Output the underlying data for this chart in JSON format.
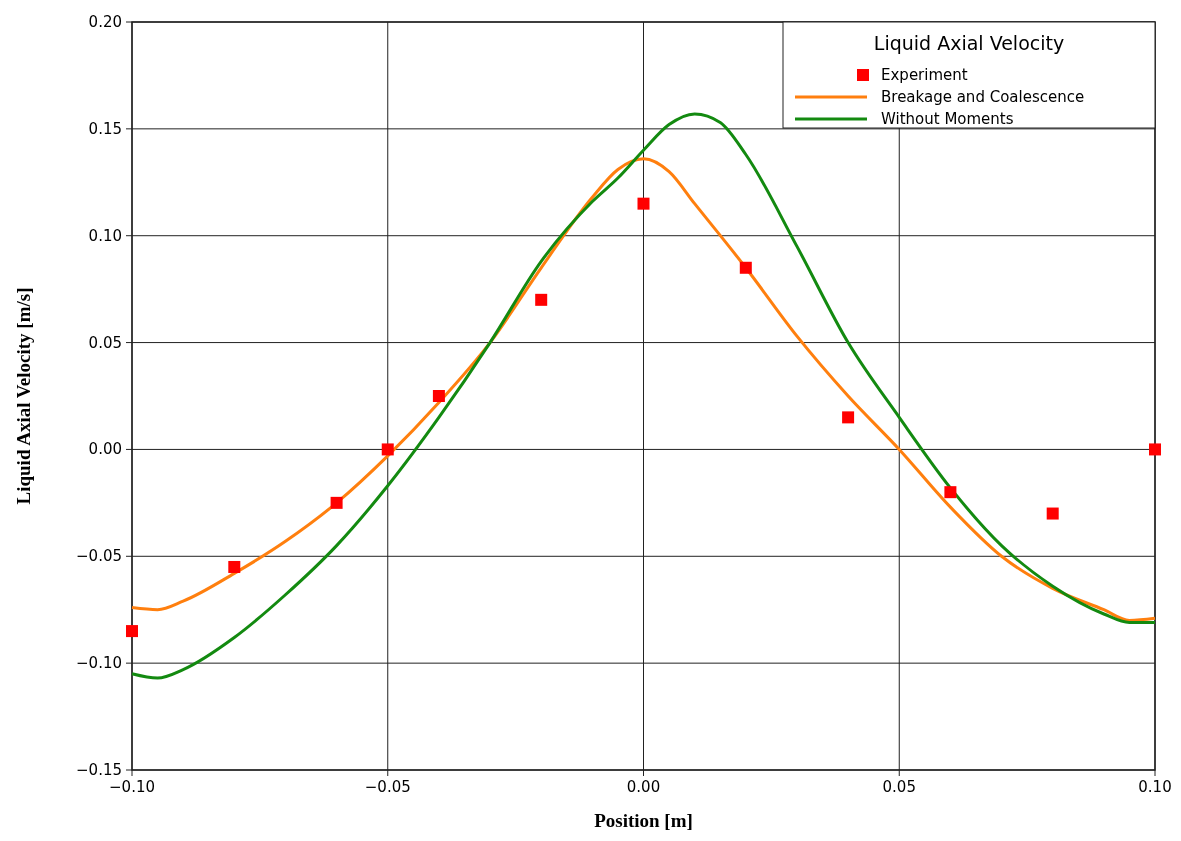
{
  "chart_data": {
    "type": "line",
    "xlabel": "Position [m]",
    "ylabel": "Liquid Axial Velocity [m/s]",
    "legend_title": "Liquid Axial Velocity",
    "xlim": [
      -0.1,
      0.1
    ],
    "xticks": [
      {
        "value": -0.1,
        "label": "−0.10"
      },
      {
        "value": -0.05,
        "label": "−0.05"
      },
      {
        "value": 0,
        "label": "0.00"
      },
      {
        "value": 0.05,
        "label": "0.05"
      },
      {
        "value": 0.1,
        "label": "0.10"
      }
    ],
    "ylim": [
      -0.15,
      0.2
    ],
    "yticks": [
      {
        "value": -0.15,
        "label": "−0.15"
      },
      {
        "value": -0.1,
        "label": "−0.10"
      },
      {
        "value": -0.05,
        "label": "−0.05"
      },
      {
        "value": 0,
        "label": "0.00"
      },
      {
        "value": 0.05,
        "label": "0.05"
      },
      {
        "value": 0.1,
        "label": "0.10"
      },
      {
        "value": 0.15,
        "label": "0.15"
      },
      {
        "value": 0.2,
        "label": "0.20"
      }
    ],
    "grid": true,
    "legend": "top right",
    "series": [
      {
        "name": "Experiment",
        "type": "scatter",
        "marker": "square",
        "color": "#ff0000",
        "x": [
          -0.1,
          -0.08,
          -0.06,
          -0.05,
          -0.04,
          -0.02,
          0,
          0.02,
          0.04,
          0.06,
          0.08,
          0.1
        ],
        "values": [
          -0.085,
          -0.055,
          -0.025,
          0,
          0.025,
          0.07,
          0.115,
          0.085,
          0.015,
          -0.02,
          -0.03,
          0
        ]
      },
      {
        "name": "Breakage and Coalescence",
        "color": "#ff7f0e",
        "x": [
          -0.1,
          -0.095,
          -0.09,
          -0.08,
          -0.07,
          -0.06,
          -0.05,
          -0.04,
          -0.03,
          -0.02,
          -0.01,
          -0.005,
          0,
          0.005,
          0.01,
          0.02,
          0.03,
          0.04,
          0.05,
          0.06,
          0.07,
          0.08,
          0.09,
          0.095,
          0.1
        ],
        "values": [
          -0.074,
          -0.075,
          -0.071,
          -0.058,
          -0.043,
          -0.025,
          -0.003,
          0.022,
          0.05,
          0.085,
          0.118,
          0.131,
          0.136,
          0.13,
          0.115,
          0.085,
          0.053,
          0.025,
          0,
          -0.027,
          -0.05,
          -0.065,
          -0.075,
          -0.08,
          -0.079
        ]
      },
      {
        "name": "Without Moments",
        "color": "#138a10",
        "x": [
          -0.1,
          -0.095,
          -0.09,
          -0.08,
          -0.07,
          -0.06,
          -0.05,
          -0.04,
          -0.03,
          -0.02,
          -0.01,
          -0.005,
          0,
          0.005,
          0.01,
          0.015,
          0.02,
          0.03,
          0.04,
          0.05,
          0.06,
          0.07,
          0.08,
          0.09,
          0.095,
          0.1
        ],
        "values": [
          -0.105,
          -0.107,
          -0.103,
          -0.088,
          -0.068,
          -0.045,
          -0.017,
          0.015,
          0.05,
          0.088,
          0.116,
          0.127,
          0.14,
          0.152,
          0.157,
          0.153,
          0.138,
          0.095,
          0.05,
          0.015,
          -0.018,
          -0.045,
          -0.064,
          -0.077,
          -0.081,
          -0.081
        ]
      }
    ]
  }
}
